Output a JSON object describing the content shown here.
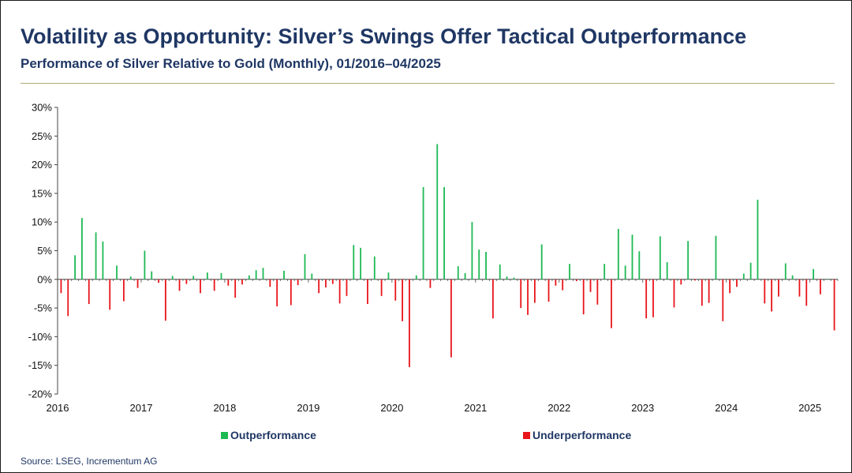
{
  "title": "Volatility as Opportunity: Silver’s Swings Offer Tactical Outperformance",
  "subtitle": "Performance of Silver Relative to Gold (Monthly), 01/2016–04/2025",
  "source": "Source: LSEG, Incrementum AG",
  "colors": {
    "positive": "#1db954",
    "negative": "#e8151b",
    "title": "#1f3764",
    "rule": "#b5ab7a"
  },
  "chart_data": {
    "type": "bar",
    "title": "",
    "xlabel": "",
    "ylabel": "",
    "ylim": [
      -20,
      30
    ],
    "y_ticks": [
      "30%",
      "25%",
      "20%",
      "15%",
      "10%",
      "5%",
      "0%",
      "-5%",
      "-10%",
      "-15%",
      "-20%"
    ],
    "y_tick_values": [
      30,
      25,
      20,
      15,
      10,
      5,
      0,
      -5,
      -10,
      -15,
      -20
    ],
    "x_tick_labels": [
      "2016",
      "2017",
      "2018",
      "2019",
      "2020",
      "2021",
      "2022",
      "2023",
      "2024",
      "2025"
    ],
    "start": "2016-01",
    "end": "2025-04",
    "unit": "%",
    "grid": false,
    "legend_position": "bottom",
    "series": [
      {
        "name": "Outperformance",
        "color": "#1db954"
      },
      {
        "name": "Underperformance",
        "color": "#e8151b"
      }
    ],
    "values": [
      -2.4,
      -6.4,
      4.2,
      10.7,
      -4.3,
      8.2,
      6.6,
      -5.3,
      2.4,
      -3.8,
      0.5,
      -1.5,
      5.0,
      1.4,
      -0.6,
      -7.2,
      0.6,
      -2.0,
      -0.8,
      0.6,
      -2.4,
      1.2,
      -2.0,
      1.1,
      -1.1,
      -3.2,
      -0.9,
      0.7,
      1.6,
      2.0,
      -1.3,
      -4.7,
      1.5,
      -4.5,
      -1.0,
      4.4,
      1.0,
      -2.4,
      -1.4,
      -0.8,
      -4.2,
      -2.9,
      6.0,
      5.5,
      -4.3,
      4.0,
      -2.9,
      1.2,
      -3.7,
      -7.3,
      -15.3,
      0.7,
      16.1,
      -1.5,
      23.6,
      16.1,
      -13.6,
      2.3,
      1.1,
      10.0,
      5.2,
      4.8,
      -6.8,
      2.6,
      0.5,
      0.3,
      -5.0,
      -6.2,
      -4.1,
      6.1,
      -3.9,
      -1.1,
      -1.9,
      2.7,
      -0.3,
      -6.1,
      -2.2,
      -4.4,
      2.7,
      -8.5,
      8.8,
      2.4,
      7.8,
      4.9,
      -6.8,
      -6.6,
      7.5,
      3.0,
      -4.9,
      -0.9,
      6.7,
      -0.2,
      -4.6,
      -4.1,
      7.6,
      -7.3,
      -2.4,
      -1.3,
      1.0,
      2.9,
      13.9,
      -4.2,
      -5.6,
      -3.0,
      2.8,
      0.7,
      -3.0,
      -4.6,
      1.8,
      -2.6,
      0.1,
      -8.9
    ]
  }
}
